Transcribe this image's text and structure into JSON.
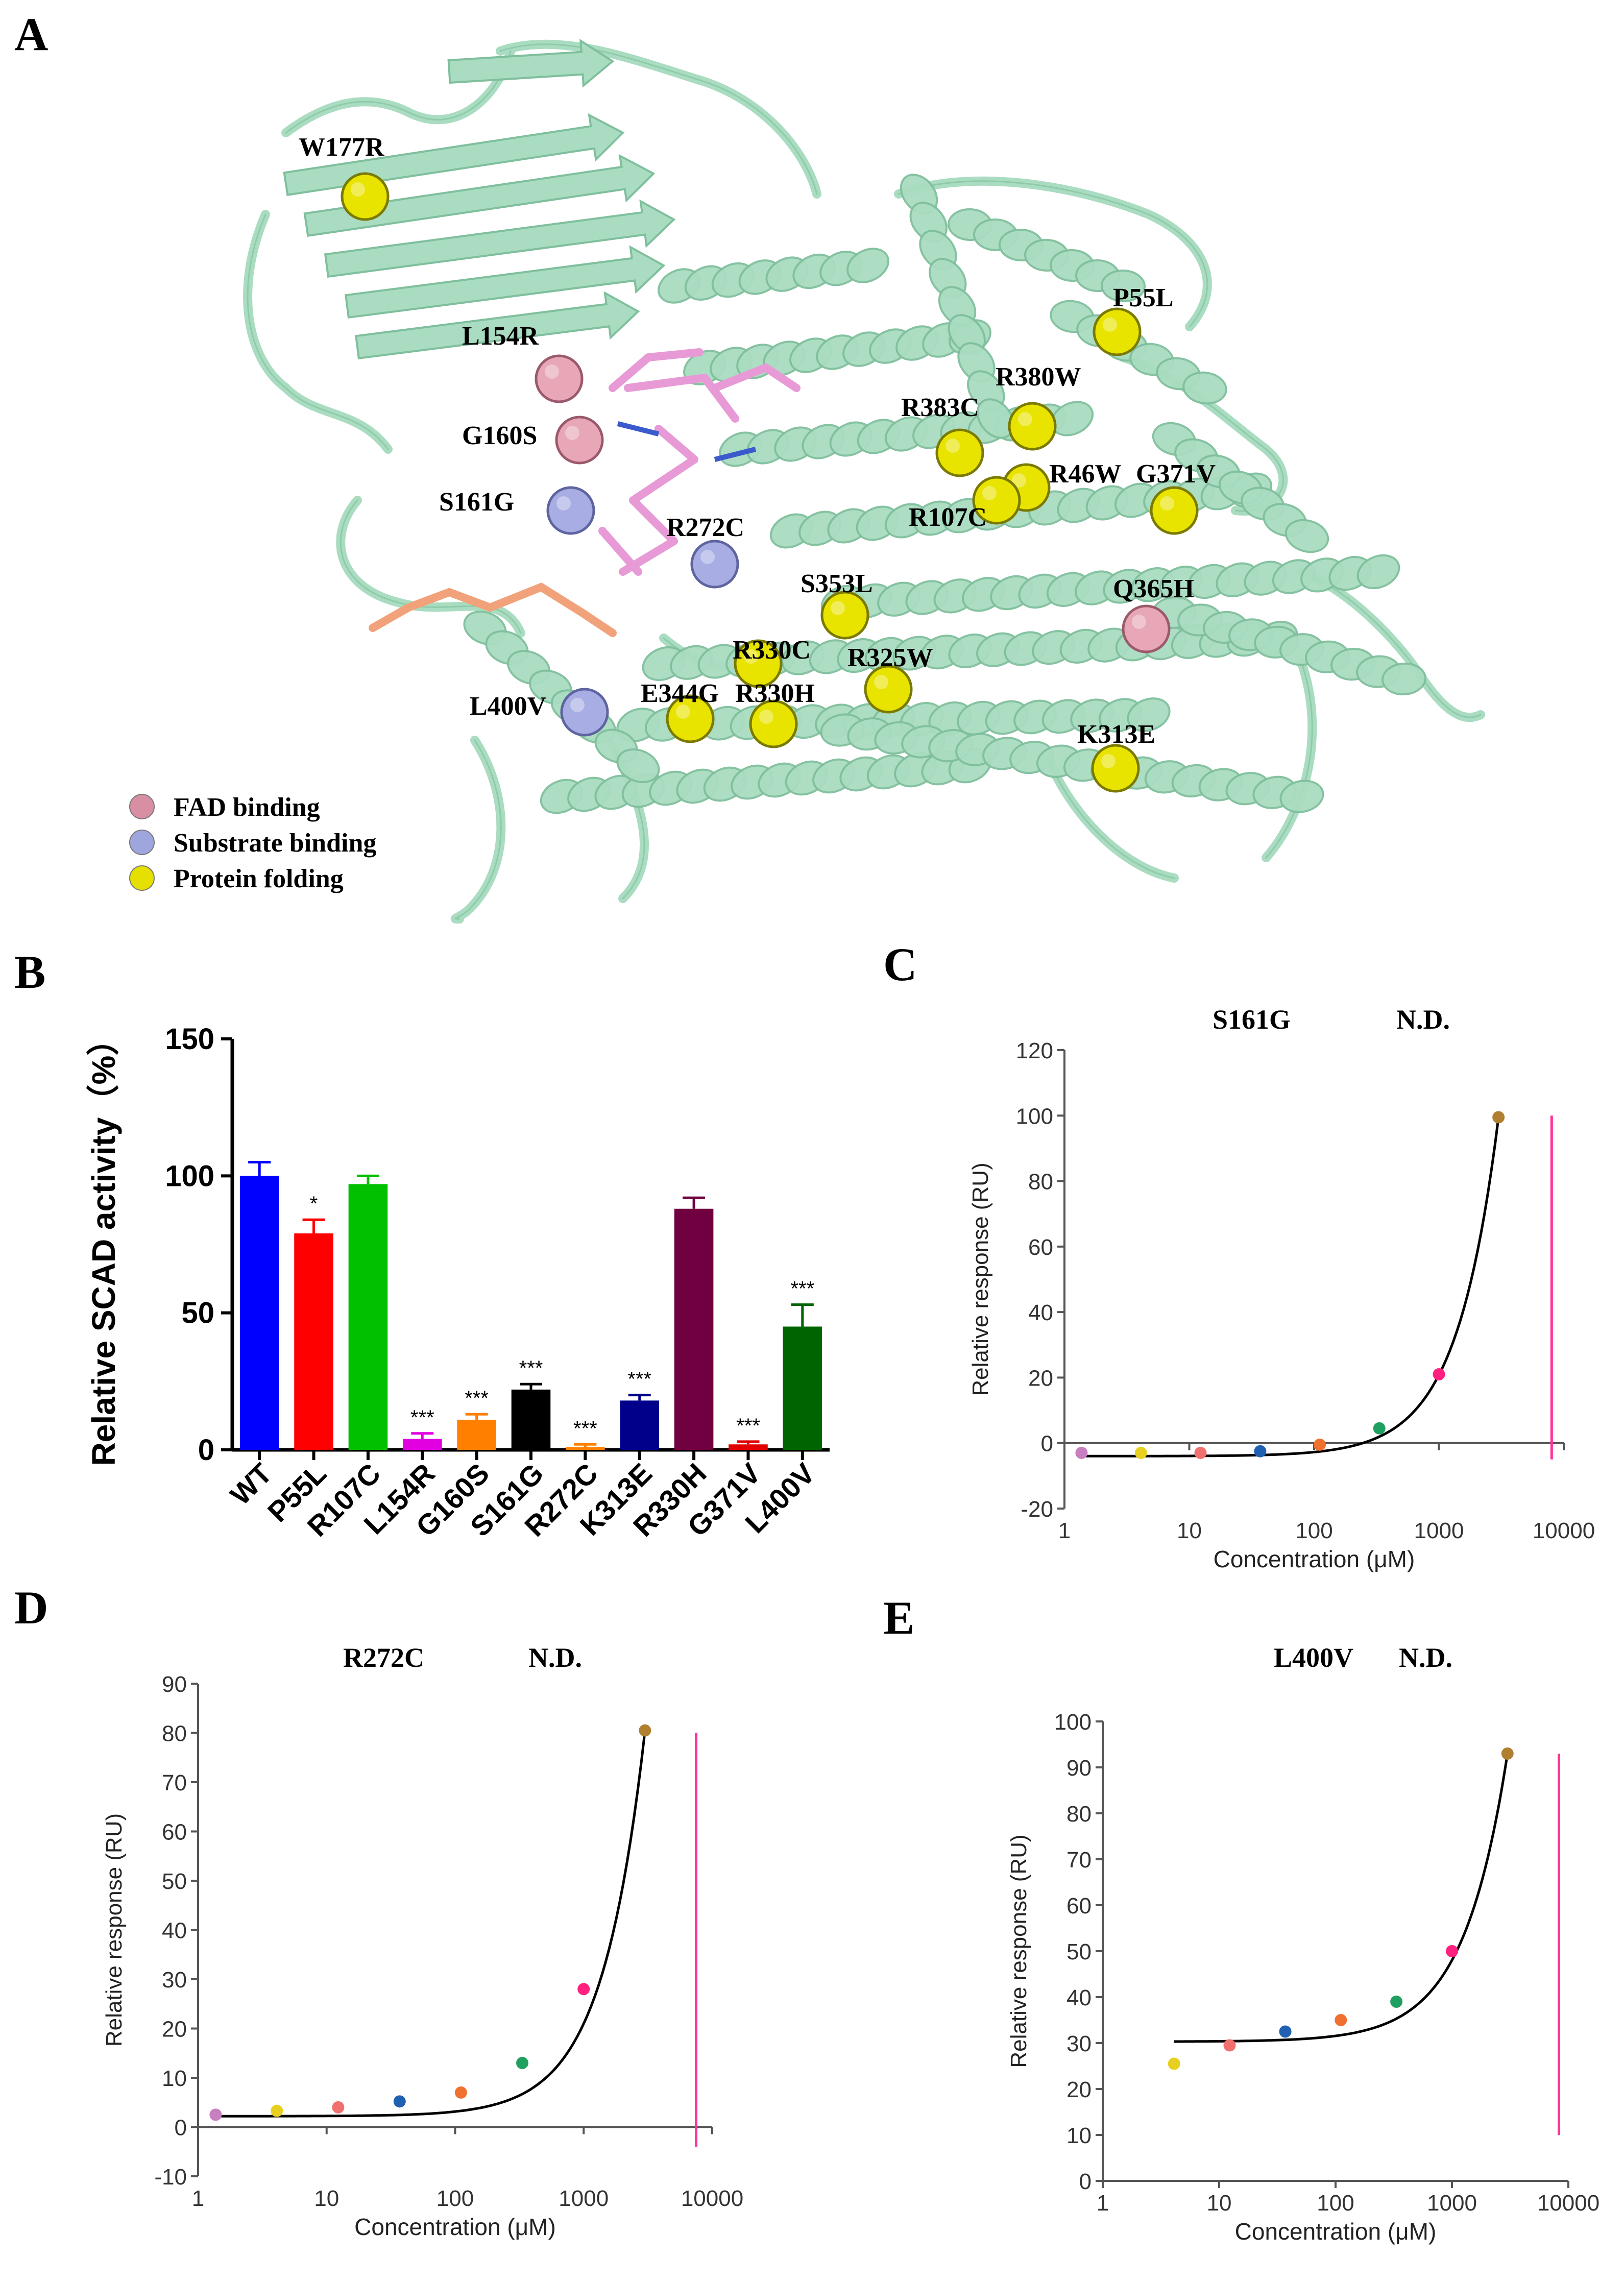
{
  "panels": {
    "A": {
      "letter": "A",
      "mutations": [
        {
          "label": "W177R",
          "category": "folding"
        },
        {
          "label": "L154R",
          "category": "fad"
        },
        {
          "label": "G160S",
          "category": "fad"
        },
        {
          "label": "S161G",
          "category": "substrate"
        },
        {
          "label": "R272C",
          "category": "substrate"
        },
        {
          "label": "P55L",
          "category": "folding"
        },
        {
          "label": "R380W",
          "category": "folding"
        },
        {
          "label": "R383C",
          "category": "folding"
        },
        {
          "label": "R46W",
          "category": "folding"
        },
        {
          "label": "G371V",
          "category": "folding"
        },
        {
          "label": "R107C",
          "category": "folding"
        },
        {
          "label": "S353L",
          "category": "folding"
        },
        {
          "label": "Q365H",
          "category": "fad"
        },
        {
          "label": "R330C",
          "category": "folding"
        },
        {
          "label": "R325W",
          "category": "folding"
        },
        {
          "label": "E344G",
          "category": "folding"
        },
        {
          "label": "R330H",
          "category": "folding"
        },
        {
          "label": "L400V",
          "category": "substrate"
        },
        {
          "label": "K313E",
          "category": "folding"
        }
      ],
      "legend": [
        {
          "label": "FAD binding",
          "color": "#d98fa3"
        },
        {
          "label": "Substrate binding",
          "color": "#9fa6de"
        },
        {
          "label": "Protein folding",
          "color": "#e5e000"
        }
      ],
      "colors": {
        "ribbon": "#a9dcc0",
        "ribbon_edge": "#7fbf9d",
        "ligand": "#e79ad6",
        "ligand2": "#f2a27a"
      }
    },
    "B": {
      "letter": "B"
    },
    "C": {
      "letter": "C"
    },
    "D": {
      "letter": "D"
    },
    "E": {
      "letter": "E"
    }
  },
  "chart_data": [
    {
      "panel": "B",
      "type": "bar",
      "ylabel": "Relative SCAD activity（%）",
      "ylim": [
        0,
        150
      ],
      "yticks": [
        0,
        50,
        100,
        150
      ],
      "categories": [
        "WT",
        "P55L",
        "R107C",
        "L154R",
        "G160S",
        "S161G",
        "R272C",
        "K313E",
        "R330H",
        "G371V",
        "L400V"
      ],
      "values": [
        100,
        79,
        97,
        4,
        11,
        22,
        1,
        18,
        88,
        2,
        45
      ],
      "errors": [
        5,
        5,
        3,
        2,
        2,
        2,
        1,
        2,
        4,
        1,
        8
      ],
      "significance": [
        "",
        "*",
        "",
        "***",
        "***",
        "***",
        "***",
        "***",
        "",
        "***",
        "***"
      ],
      "colors": [
        "#0000ff",
        "#ff0000",
        "#00c000",
        "#e000e0",
        "#ff8000",
        "#000000",
        "#ff8000",
        "#00008b",
        "#700040",
        "#e00000",
        "#006400"
      ]
    },
    {
      "panel": "C",
      "type": "scatter",
      "title": "S161G",
      "annotation": "N.D.",
      "xlabel": "Concentration (μM)",
      "ylabel": "Relative response (RU)",
      "xscale": "log",
      "xlim": [
        1,
        10000
      ],
      "ylim": [
        -20,
        120
      ],
      "yticks": [
        -20,
        0,
        20,
        40,
        60,
        80,
        100,
        120
      ],
      "xticks": [
        "1",
        "10",
        "100",
        "1000",
        "10000"
      ],
      "points": [
        {
          "x": 1.37,
          "y": -3,
          "color": "#c77fc0"
        },
        {
          "x": 4.1,
          "y": -3,
          "color": "#e8d020"
        },
        {
          "x": 12.3,
          "y": -3,
          "color": "#f07070"
        },
        {
          "x": 37,
          "y": -2.5,
          "color": "#2060b0"
        },
        {
          "x": 111,
          "y": -0.5,
          "color": "#f07030"
        },
        {
          "x": 333,
          "y": 4.5,
          "color": "#20a060"
        },
        {
          "x": 1000,
          "y": 21,
          "color": "#ff2080"
        },
        {
          "x": 3000,
          "y": 99.5,
          "color": "#b08030"
        }
      ],
      "fit": {
        "base": -4,
        "amp": 103.5,
        "k": 3000,
        "p": 1.3,
        "xmin": 1.37,
        "xmax": 3000
      },
      "vline": {
        "x": 8000,
        "ymin": -5,
        "ymax": 100,
        "color": "#ff3399"
      }
    },
    {
      "panel": "D",
      "type": "scatter",
      "title": "R272C",
      "annotation": "N.D.",
      "xlabel": "Concentration (μM)",
      "ylabel": "Relative response (RU)",
      "xscale": "log",
      "xlim": [
        1,
        10000
      ],
      "ylim": [
        -10,
        90
      ],
      "yticks": [
        -10,
        0,
        10,
        20,
        30,
        40,
        50,
        60,
        70,
        80,
        90
      ],
      "xticks": [
        "1",
        "10",
        "100",
        "1000",
        "10000"
      ],
      "points": [
        {
          "x": 1.37,
          "y": 2.5,
          "color": "#c77fc0"
        },
        {
          "x": 4.1,
          "y": 3.3,
          "color": "#e8d020"
        },
        {
          "x": 12.3,
          "y": 4,
          "color": "#f07070"
        },
        {
          "x": 37,
          "y": 5.2,
          "color": "#2060b0"
        },
        {
          "x": 111,
          "y": 7,
          "color": "#f07030"
        },
        {
          "x": 333,
          "y": 13,
          "color": "#20a060"
        },
        {
          "x": 1000,
          "y": 28,
          "color": "#ff2080"
        },
        {
          "x": 3000,
          "y": 80.5,
          "color": "#b08030"
        }
      ],
      "fit": {
        "base": 2.2,
        "amp": 78.3,
        "k": 3000,
        "p": 1.3,
        "xmin": 1.37,
        "xmax": 3000
      },
      "vline": {
        "x": 7500,
        "ymin": -4,
        "ymax": 80,
        "color": "#ff3399"
      }
    },
    {
      "panel": "E",
      "type": "scatter",
      "title": "L400V",
      "annotation": "N.D.",
      "xlabel": "Concentration (μM)",
      "ylabel": "Relative response (RU)",
      "xscale": "log",
      "xlim": [
        1,
        10000
      ],
      "ylim": [
        0,
        100
      ],
      "yticks": [
        0,
        10,
        20,
        30,
        40,
        50,
        60,
        70,
        80,
        90,
        100
      ],
      "xticks": [
        "1",
        "10",
        "100",
        "1000",
        "10000"
      ],
      "points": [
        {
          "x": 4.1,
          "y": 25.5,
          "color": "#e8d020"
        },
        {
          "x": 12.3,
          "y": 29.5,
          "color": "#f07070"
        },
        {
          "x": 37,
          "y": 32.5,
          "color": "#2060b0"
        },
        {
          "x": 111,
          "y": 35,
          "color": "#f07030"
        },
        {
          "x": 333,
          "y": 39,
          "color": "#20a060"
        },
        {
          "x": 1000,
          "y": 50,
          "color": "#ff2080"
        },
        {
          "x": 3000,
          "y": 93,
          "color": "#b08030"
        }
      ],
      "fit": {
        "base": 30.3,
        "amp": 62.7,
        "k": 3000,
        "p": 1.15,
        "xmin": 4.1,
        "xmax": 3000
      },
      "vline": {
        "x": 8300,
        "ymin": 10,
        "ymax": 93,
        "color": "#ff3399"
      }
    }
  ]
}
